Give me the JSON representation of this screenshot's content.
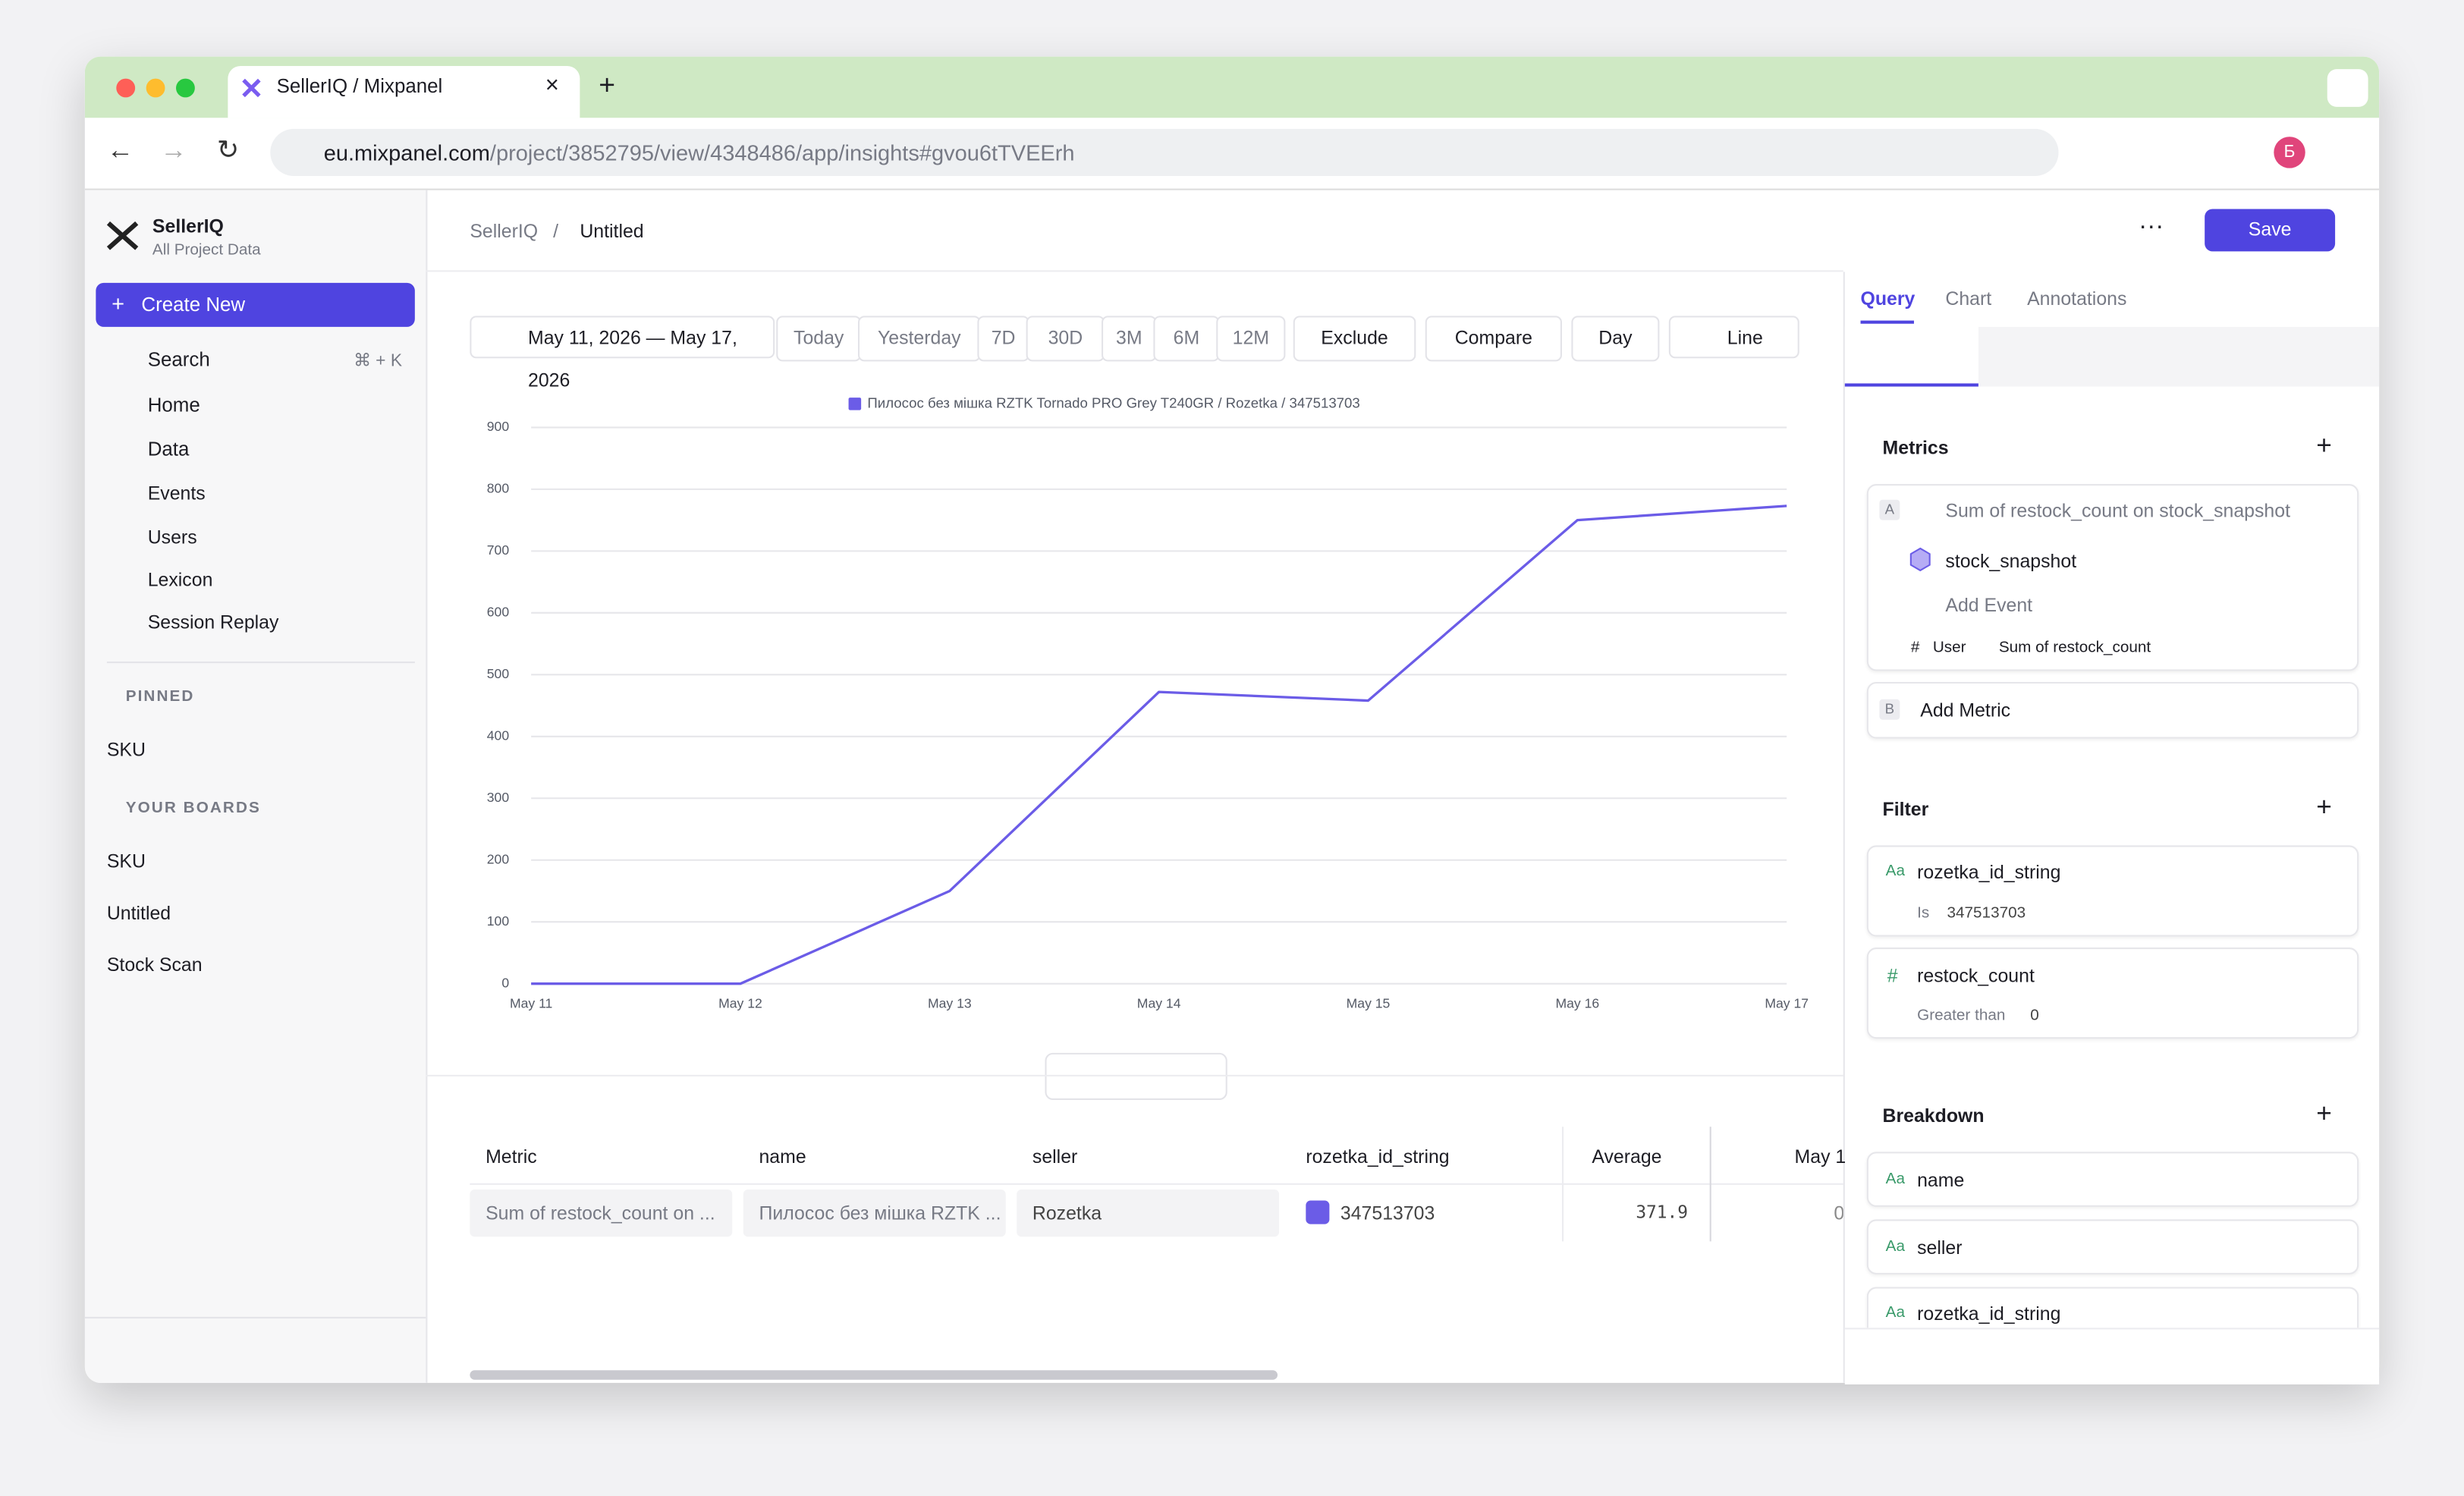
{
  "browser": {
    "tab_title": "SellerIQ / Mixpanel",
    "url_host": "eu.mixpanel.com",
    "url_path": "/project/3852795/view/4348486/app/insights#gvou6tTVEErh",
    "avatar": "Б"
  },
  "sidebar": {
    "project": "SellerIQ",
    "project_sub": "All Project Data",
    "create": "Create New",
    "search": "Search",
    "search_shortcut": "⌘ + K",
    "nav": [
      "Home",
      "Data",
      "Events",
      "Users",
      "Lexicon",
      "Session Replay"
    ],
    "pinned_heading": "PINNED",
    "pinned": [
      "SKU"
    ],
    "boards_heading": "YOUR BOARDS",
    "boards": [
      "SKU",
      "Untitled",
      "Stock Scan"
    ]
  },
  "header": {
    "crumb": "SellerIQ",
    "page": "Untitled",
    "save": "Save"
  },
  "toolbar": {
    "date_range": "May 11, 2026 — May 17, 2026",
    "ranges": [
      "Today",
      "Yesterday",
      "7D",
      "30D",
      "3M",
      "6M",
      "12M"
    ],
    "exclude": "Exclude",
    "compare": "Compare",
    "interval": "Day",
    "chart_type": "Line"
  },
  "chart_data": {
    "type": "line",
    "categories": [
      "May 11",
      "May 12",
      "May 13",
      "May 14",
      "May 15",
      "May 16",
      "May 17"
    ],
    "series": [
      {
        "name": "Пилосос без мішка RZTK Tornado PRO Grey T240GR / Rozetka / 347513703",
        "color": "#6b5ce7",
        "values": [
          0,
          0,
          150,
          472,
          458,
          750,
          773
        ]
      }
    ],
    "ylim": [
      0,
      900
    ],
    "yticks": [
      0,
      100,
      200,
      300,
      400,
      500,
      600,
      700,
      800,
      900
    ],
    "grid": true,
    "legend": "top"
  },
  "table": {
    "headers": [
      "Metric",
      "name",
      "seller",
      "rozetka_id_string",
      "Average",
      "May 1"
    ],
    "rows": [
      [
        "Sum of restock_count on ...",
        "Пилосос без мішка RZTK ...",
        "Rozetka",
        "347513703",
        "371.9",
        "0"
      ]
    ]
  },
  "panel": {
    "tabs": [
      "Query",
      "Chart",
      "Annotations"
    ],
    "metrics_heading": "Metrics",
    "metric_letter": "A",
    "metric": "Sum of restock_count on stock_snapshot",
    "event": "stock_snapshot",
    "add_event": "Add Event",
    "measure_type": "#",
    "measure_user": "User",
    "measure": "Sum of restock_count",
    "add_letter": "B",
    "add_metric": "Add Metric",
    "filter_heading": "Filter",
    "filters": [
      {
        "type": "Aa",
        "prop": "rozetka_id_string",
        "op": "Is",
        "value": "347513703"
      },
      {
        "type": "#",
        "prop": "restock_count",
        "op": "Greater than",
        "value": "0"
      }
    ],
    "breakdown_heading": "Breakdown",
    "breakdowns": [
      {
        "type": "Aa",
        "prop": "name"
      },
      {
        "type": "Aa",
        "prop": "seller"
      },
      {
        "type": "Aa",
        "prop": "rozetka_id_string"
      }
    ]
  }
}
